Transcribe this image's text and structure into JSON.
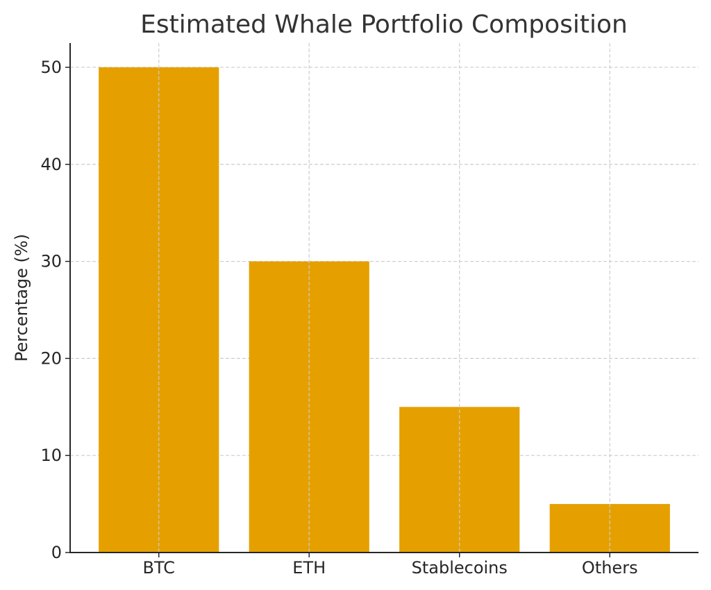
{
  "chart_data": {
    "type": "bar",
    "title": "Estimated Whale Portfolio Composition",
    "xlabel": "",
    "ylabel": "Percentage (%)",
    "categories": [
      "BTC",
      "ETH",
      "Stablecoins",
      "Others"
    ],
    "values": [
      50,
      30,
      15,
      5
    ],
    "ylim": [
      0,
      52.5
    ],
    "yticks": [
      0,
      10,
      20,
      30,
      40,
      50
    ],
    "grid": true,
    "bar_color": "#E5A000"
  }
}
